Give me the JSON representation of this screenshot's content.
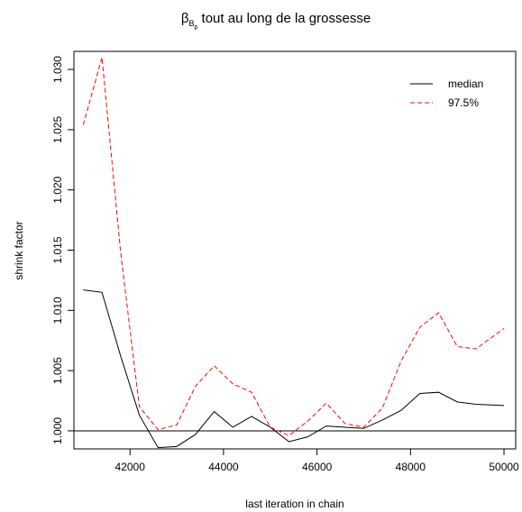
{
  "chart_data": {
    "type": "line",
    "title": {
      "symbol": "β",
      "sub_letter": "B",
      "sub_sub_letter": "p",
      "text": " tout au long de la grossesse"
    },
    "xlabel": "last iteration in chain",
    "ylabel": "shrink factor",
    "xlim": [
      40800,
      50250
    ],
    "ylim": [
      0.9985,
      1.0315
    ],
    "x_ticks": [
      42000,
      44000,
      46000,
      48000,
      50000
    ],
    "x_tick_labels": [
      "42000",
      "44000",
      "46000",
      "48000",
      "50000"
    ],
    "y_ticks": [
      1.0,
      1.005,
      1.01,
      1.015,
      1.02,
      1.025,
      1.03
    ],
    "y_tick_labels": [
      "1.000",
      "1.005",
      "1.010",
      "1.015",
      "1.020",
      "1.025",
      "1.030"
    ],
    "reference_line": 1.0,
    "grid": false,
    "legend_position": "top-right",
    "x": [
      41000,
      41400,
      41800,
      42200,
      42600,
      43000,
      43400,
      43800,
      44200,
      44600,
      45000,
      45400,
      45800,
      46200,
      46600,
      47000,
      47400,
      47800,
      48200,
      48600,
      49000,
      49400,
      50000
    ],
    "series": [
      {
        "name": "median",
        "color": "#000000",
        "dash": "solid",
        "values": [
          1.0117,
          1.0115,
          1.0062,
          1.0013,
          0.9986,
          0.9987,
          0.9997,
          1.0016,
          1.0003,
          1.0012,
          1.0003,
          0.9991,
          0.9995,
          1.0004,
          1.0003,
          1.0002,
          1.0009,
          1.0017,
          1.0031,
          1.0032,
          1.0024,
          1.0022,
          1.0021
        ]
      },
      {
        "name": "97.5%",
        "color": "#ff0000",
        "dash": "dashed",
        "values": [
          1.0254,
          1.031,
          1.0148,
          1.002,
          1.0001,
          1.0005,
          1.0037,
          1.0054,
          1.0039,
          1.0032,
          1.0003,
          0.9996,
          1.0008,
          1.0023,
          1.0006,
          1.0003,
          1.0019,
          1.0058,
          1.0086,
          1.0098,
          1.007,
          1.0068,
          1.0085
        ]
      }
    ]
  }
}
